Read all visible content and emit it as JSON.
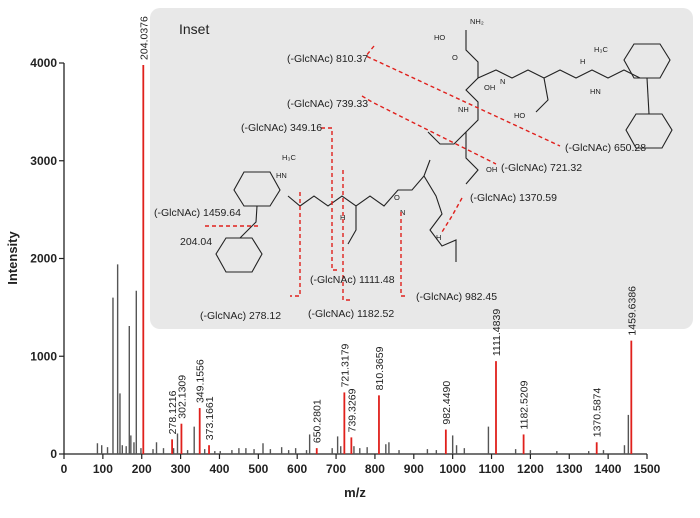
{
  "chart_data": {
    "type": "bar",
    "xlabel": "m/z",
    "ylabel": "Intensity",
    "xlim": [
      0,
      1500
    ],
    "ylim": [
      0,
      4000
    ],
    "x_ticks": [
      "0",
      "100",
      "200",
      "300",
      "400",
      "500",
      "600",
      "700",
      "800",
      "900",
      "1000",
      "1100",
      "1200",
      "1300",
      "1400",
      "1500"
    ],
    "y_ticks": [
      "0",
      "1000",
      "2000",
      "3000",
      "4000"
    ],
    "colors": {
      "highlight": "#e0201c",
      "background_peaks": "#555555",
      "inset_bg": "#e8e8e8"
    },
    "series": [
      {
        "role": "labeled peaks",
        "color": "#e0201c",
        "peaks": [
          {
            "x": 204.0376,
            "y": 3980,
            "label": "204.0376"
          },
          {
            "x": 278.1216,
            "y": 150,
            "label": "278.1216"
          },
          {
            "x": 302.1309,
            "y": 310,
            "label": "302.1309"
          },
          {
            "x": 349.1556,
            "y": 470,
            "label": "349.1556"
          },
          {
            "x": 373.1661,
            "y": 90,
            "label": "373.1661"
          },
          {
            "x": 650.2801,
            "y": 60,
            "label": "650.2801"
          },
          {
            "x": 721.3179,
            "y": 630,
            "label": "721.3179"
          },
          {
            "x": 739.3269,
            "y": 170,
            "label": "739.3269"
          },
          {
            "x": 810.3659,
            "y": 600,
            "label": "810.3659"
          },
          {
            "x": 982.449,
            "y": 250,
            "label": "982.4490"
          },
          {
            "x": 1111.4839,
            "y": 950,
            "label": "1111.4839"
          },
          {
            "x": 1182.5209,
            "y": 200,
            "label": "1182.5209"
          },
          {
            "x": 1370.5874,
            "y": 120,
            "label": "1370.5874"
          },
          {
            "x": 1459.6386,
            "y": 1160,
            "label": "1459.6386"
          }
        ]
      },
      {
        "role": "unlabeled peaks",
        "color": "#555555",
        "peaks": [
          {
            "x": 86,
            "y": 110
          },
          {
            "x": 97,
            "y": 90
          },
          {
            "x": 112,
            "y": 70
          },
          {
            "x": 126,
            "y": 1600
          },
          {
            "x": 138,
            "y": 1940
          },
          {
            "x": 144,
            "y": 620
          },
          {
            "x": 150,
            "y": 90
          },
          {
            "x": 160,
            "y": 80
          },
          {
            "x": 168,
            "y": 1310
          },
          {
            "x": 172,
            "y": 190
          },
          {
            "x": 180,
            "y": 120
          },
          {
            "x": 186,
            "y": 1670
          },
          {
            "x": 198,
            "y": 60
          },
          {
            "x": 229,
            "y": 50
          },
          {
            "x": 238,
            "y": 120
          },
          {
            "x": 256,
            "y": 60
          },
          {
            "x": 282,
            "y": 60
          },
          {
            "x": 292,
            "y": 210
          },
          {
            "x": 318,
            "y": 40
          },
          {
            "x": 335,
            "y": 280
          },
          {
            "x": 362,
            "y": 50
          },
          {
            "x": 388,
            "y": 30
          },
          {
            "x": 402,
            "y": 30
          },
          {
            "x": 432,
            "y": 40
          },
          {
            "x": 450,
            "y": 60
          },
          {
            "x": 468,
            "y": 60
          },
          {
            "x": 489,
            "y": 50
          },
          {
            "x": 512,
            "y": 110
          },
          {
            "x": 531,
            "y": 50
          },
          {
            "x": 560,
            "y": 70
          },
          {
            "x": 578,
            "y": 40
          },
          {
            "x": 596,
            "y": 60
          },
          {
            "x": 624,
            "y": 40
          },
          {
            "x": 632,
            "y": 200
          },
          {
            "x": 690,
            "y": 60
          },
          {
            "x": 704,
            "y": 180
          },
          {
            "x": 712,
            "y": 80
          },
          {
            "x": 746,
            "y": 80
          },
          {
            "x": 761,
            "y": 60
          },
          {
            "x": 780,
            "y": 70
          },
          {
            "x": 828,
            "y": 100
          },
          {
            "x": 836,
            "y": 120
          },
          {
            "x": 862,
            "y": 40
          },
          {
            "x": 935,
            "y": 50
          },
          {
            "x": 958,
            "y": 40
          },
          {
            "x": 1000,
            "y": 190
          },
          {
            "x": 1010,
            "y": 90
          },
          {
            "x": 1030,
            "y": 60
          },
          {
            "x": 1092,
            "y": 280
          },
          {
            "x": 1162,
            "y": 50
          },
          {
            "x": 1200,
            "y": 40
          },
          {
            "x": 1268,
            "y": 30
          },
          {
            "x": 1350,
            "y": 30
          },
          {
            "x": 1388,
            "y": 40
          },
          {
            "x": 1442,
            "y": 90
          },
          {
            "x": 1452,
            "y": 400
          }
        ]
      }
    ],
    "inset": {
      "title": "Inset",
      "fragment_labels": [
        "(-GlcNAc) 810.37",
        "(-GlcNAc) 739.33",
        "(-GlcNAc) 349.16",
        "(-GlcNAc) 1459.64",
        "204.04",
        "(-GlcNAc) 278.12",
        "(-GlcNAc) 1182.52",
        "(-GlcNAc) 1111.48",
        "(-GlcNAc) 982.45",
        "(-GlcNAc) 1370.59",
        "(-GlcNAc) 721.32",
        "(-GlcNAc) 650.28"
      ],
      "atom_labels": [
        "NH₂",
        "HO",
        "O",
        "OH",
        "N",
        "H",
        "HN",
        "H₃C",
        "NH",
        "HO",
        "OH",
        "O",
        "N",
        "H",
        "HN",
        "H₃C",
        "H"
      ]
    }
  }
}
